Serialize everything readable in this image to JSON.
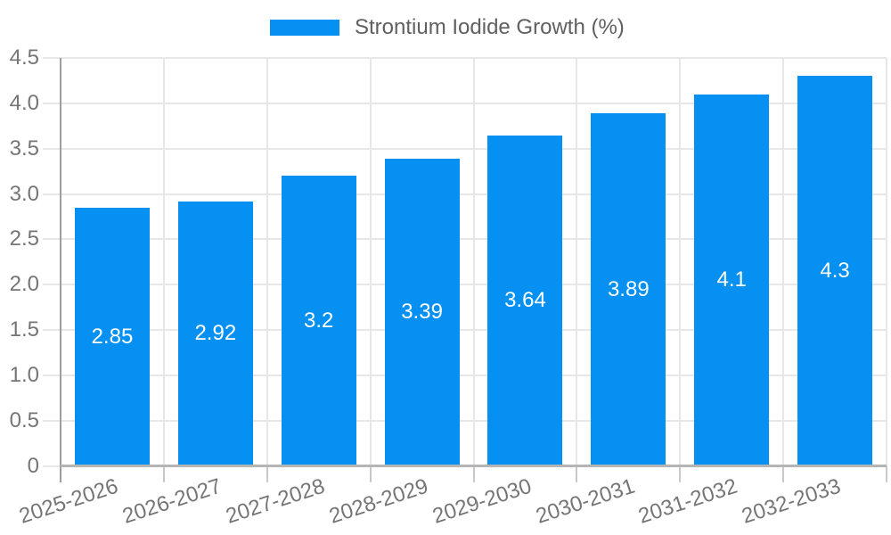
{
  "chart_data": {
    "type": "bar",
    "title": "",
    "legend": "Strontium Iodide Growth (%)",
    "legend_position": "top-center",
    "categories": [
      "2025-2026",
      "2026-2027",
      "2027-2028",
      "2028-2029",
      "2029-2030",
      "2030-2031",
      "2031-2032",
      "2032-2033"
    ],
    "values": [
      2.85,
      2.92,
      3.2,
      3.39,
      3.64,
      3.89,
      4.1,
      4.3
    ],
    "value_labels": [
      "2.85",
      "2.92",
      "3.2",
      "3.39",
      "3.64",
      "3.89",
      "4.1",
      "4.3"
    ],
    "value_label_color": "#ffffff",
    "xlabel": "",
    "ylabel": "",
    "ylim": [
      0,
      4.5
    ],
    "ytick_labels": [
      "0",
      "0.5",
      "1.0",
      "1.5",
      "2.0",
      "2.5",
      "3.0",
      "3.5",
      "4.0",
      "4.5"
    ],
    "grid": true,
    "bar_color": "#0590F2",
    "grid_color": "#e7e7e7",
    "axis_color": "#9e9e9e",
    "tick_label_color": "#757575"
  }
}
